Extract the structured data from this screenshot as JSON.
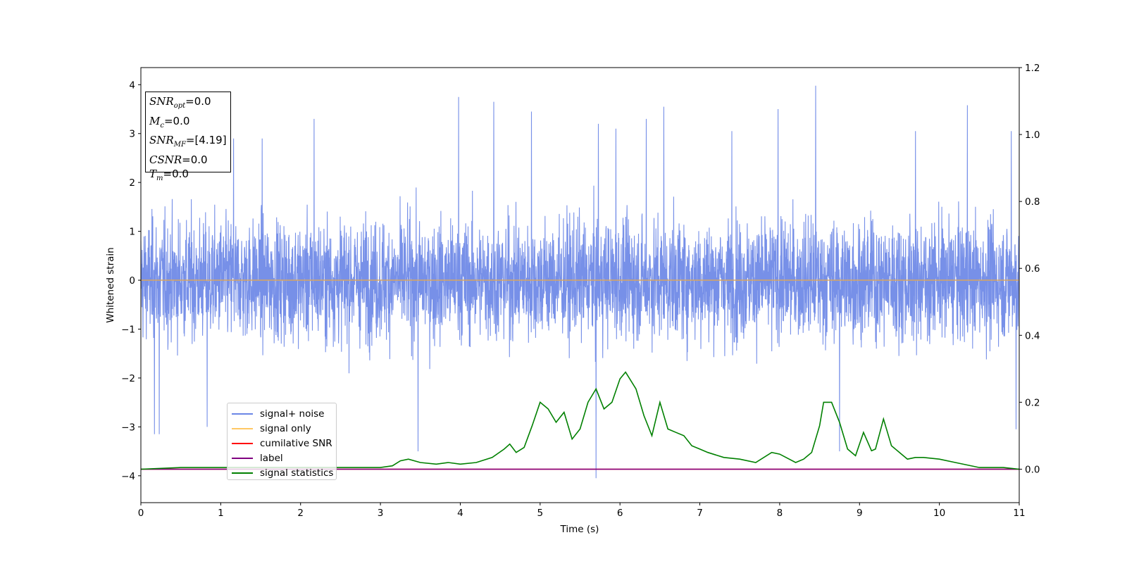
{
  "chart_data": {
    "type": "line",
    "xlabel": "Time (s)",
    "ylabel": "Whitened strain",
    "xlim": [
      0,
      11
    ],
    "ylim": [
      -4.55,
      4.35
    ],
    "y2lim": [
      -0.1,
      1.2
    ],
    "x_ticks": [
      "0",
      "1",
      "2",
      "3",
      "4",
      "5",
      "6",
      "7",
      "8",
      "9",
      "10",
      "11"
    ],
    "y_ticks": [
      {
        "v": 4,
        "label": "4"
      },
      {
        "v": 3,
        "label": "3"
      },
      {
        "v": 2,
        "label": "2"
      },
      {
        "v": 1,
        "label": "1"
      },
      {
        "v": 0,
        "label": "0"
      },
      {
        "v": -1,
        "label": "−1"
      },
      {
        "v": -2,
        "label": "−2"
      },
      {
        "v": -3,
        "label": "−3"
      },
      {
        "v": -4,
        "label": "−4"
      }
    ],
    "y2_ticks": [
      "0.0",
      "0.2",
      "0.4",
      "0.6",
      "0.8",
      "1.0",
      "1.2"
    ],
    "colors": {
      "signal_noise": "#6b87e6",
      "signal_only": "#ffc864",
      "cumulative_snr": "#ff0000",
      "label": "#800080",
      "signal_statistics": "#008000",
      "zero_line": "#d9a560"
    },
    "series": [
      {
        "name": "signal+ noise",
        "axis": "left",
        "kind": "noise",
        "noise_envelope": {
          "t": [
            0,
            11
          ],
          "typical_amplitude": [
            -2.1,
            2.2
          ]
        },
        "peaks": [
          {
            "x": 0.17,
            "y": -3.15
          },
          {
            "x": 0.23,
            "y": -3.15
          },
          {
            "x": 0.83,
            "y": -3.0
          },
          {
            "x": 1.16,
            "y": 2.9
          },
          {
            "x": 1.52,
            "y": 2.9
          },
          {
            "x": 2.17,
            "y": 3.3
          },
          {
            "x": 3.47,
            "y": -3.5
          },
          {
            "x": 3.98,
            "y": 3.75
          },
          {
            "x": 4.42,
            "y": 3.65
          },
          {
            "x": 4.89,
            "y": 3.45
          },
          {
            "x": 5.7,
            "y": -4.05
          },
          {
            "x": 5.73,
            "y": 3.2
          },
          {
            "x": 5.95,
            "y": 3.1
          },
          {
            "x": 6.33,
            "y": 3.3
          },
          {
            "x": 6.55,
            "y": 3.55
          },
          {
            "x": 7.4,
            "y": 3.05
          },
          {
            "x": 7.98,
            "y": 3.5
          },
          {
            "x": 8.45,
            "y": 3.98
          },
          {
            "x": 8.75,
            "y": -3.5
          },
          {
            "x": 9.7,
            "y": 3.05
          },
          {
            "x": 10.35,
            "y": 3.58
          },
          {
            "x": 10.9,
            "y": 3.05
          },
          {
            "x": 10.96,
            "y": -3.05
          }
        ]
      },
      {
        "name": "signal only",
        "axis": "left",
        "x": [
          0,
          11
        ],
        "values": [
          0,
          0
        ]
      },
      {
        "name": "cumilative SNR",
        "axis": "right",
        "x": [
          0,
          11
        ],
        "values": [
          0,
          0
        ]
      },
      {
        "name": "label",
        "axis": "right",
        "x": [
          0,
          11
        ],
        "values": [
          0,
          0
        ]
      },
      {
        "name": "signal statistics",
        "axis": "right",
        "x": [
          0,
          0.5,
          1,
          1.5,
          2,
          2.5,
          3,
          3.15,
          3.25,
          3.35,
          3.5,
          3.7,
          3.85,
          4.0,
          4.2,
          4.4,
          4.55,
          4.62,
          4.7,
          4.8,
          4.9,
          5.0,
          5.1,
          5.2,
          5.3,
          5.4,
          5.5,
          5.6,
          5.7,
          5.8,
          5.9,
          6.0,
          6.07,
          6.2,
          6.3,
          6.4,
          6.5,
          6.6,
          6.7,
          6.8,
          6.9,
          7.0,
          7.1,
          7.3,
          7.5,
          7.7,
          7.9,
          8.0,
          8.2,
          8.3,
          8.4,
          8.5,
          8.55,
          8.65,
          8.75,
          8.85,
          8.95,
          9.05,
          9.15,
          9.2,
          9.3,
          9.4,
          9.5,
          9.6,
          9.7,
          9.8,
          10.0,
          10.2,
          10.5,
          10.8,
          11
        ],
        "values": [
          0.0,
          0.005,
          0.005,
          0.005,
          0.005,
          0.005,
          0.005,
          0.01,
          0.025,
          0.03,
          0.02,
          0.015,
          0.02,
          0.015,
          0.02,
          0.035,
          0.06,
          0.075,
          0.05,
          0.065,
          0.13,
          0.2,
          0.18,
          0.14,
          0.17,
          0.09,
          0.12,
          0.2,
          0.24,
          0.18,
          0.2,
          0.27,
          0.29,
          0.24,
          0.16,
          0.1,
          0.2,
          0.12,
          0.11,
          0.1,
          0.07,
          0.06,
          0.05,
          0.035,
          0.03,
          0.02,
          0.05,
          0.045,
          0.02,
          0.03,
          0.05,
          0.13,
          0.2,
          0.2,
          0.14,
          0.06,
          0.04,
          0.11,
          0.055,
          0.06,
          0.15,
          0.07,
          0.05,
          0.03,
          0.035,
          0.035,
          0.03,
          0.02,
          0.005,
          0.005,
          0.0
        ]
      }
    ],
    "legend_position": "lower-left",
    "grid": false
  },
  "stats_box": {
    "snr_opt": {
      "sym": "SNR",
      "sub": "opt",
      "val": "=0.0"
    },
    "mc": {
      "sym": "M",
      "sub": "c",
      "val": "=0.0"
    },
    "snr_mf": {
      "sym": "SNR",
      "sub": "MF",
      "val": "=[4.19]"
    },
    "csnr": {
      "sym": "CSNR",
      "val": "=0.0"
    },
    "tm": {
      "sym": "T",
      "sub": "m",
      "val": "=0.0"
    }
  },
  "legend": [
    {
      "label": "signal+ noise",
      "color": "#6b87e6"
    },
    {
      "label": "signal only",
      "color": "#ffc864"
    },
    {
      "label": "cumilative SNR",
      "color": "#ff0000"
    },
    {
      "label": "label",
      "color": "#800080"
    },
    {
      "label": "signal statistics",
      "color": "#008000"
    }
  ]
}
